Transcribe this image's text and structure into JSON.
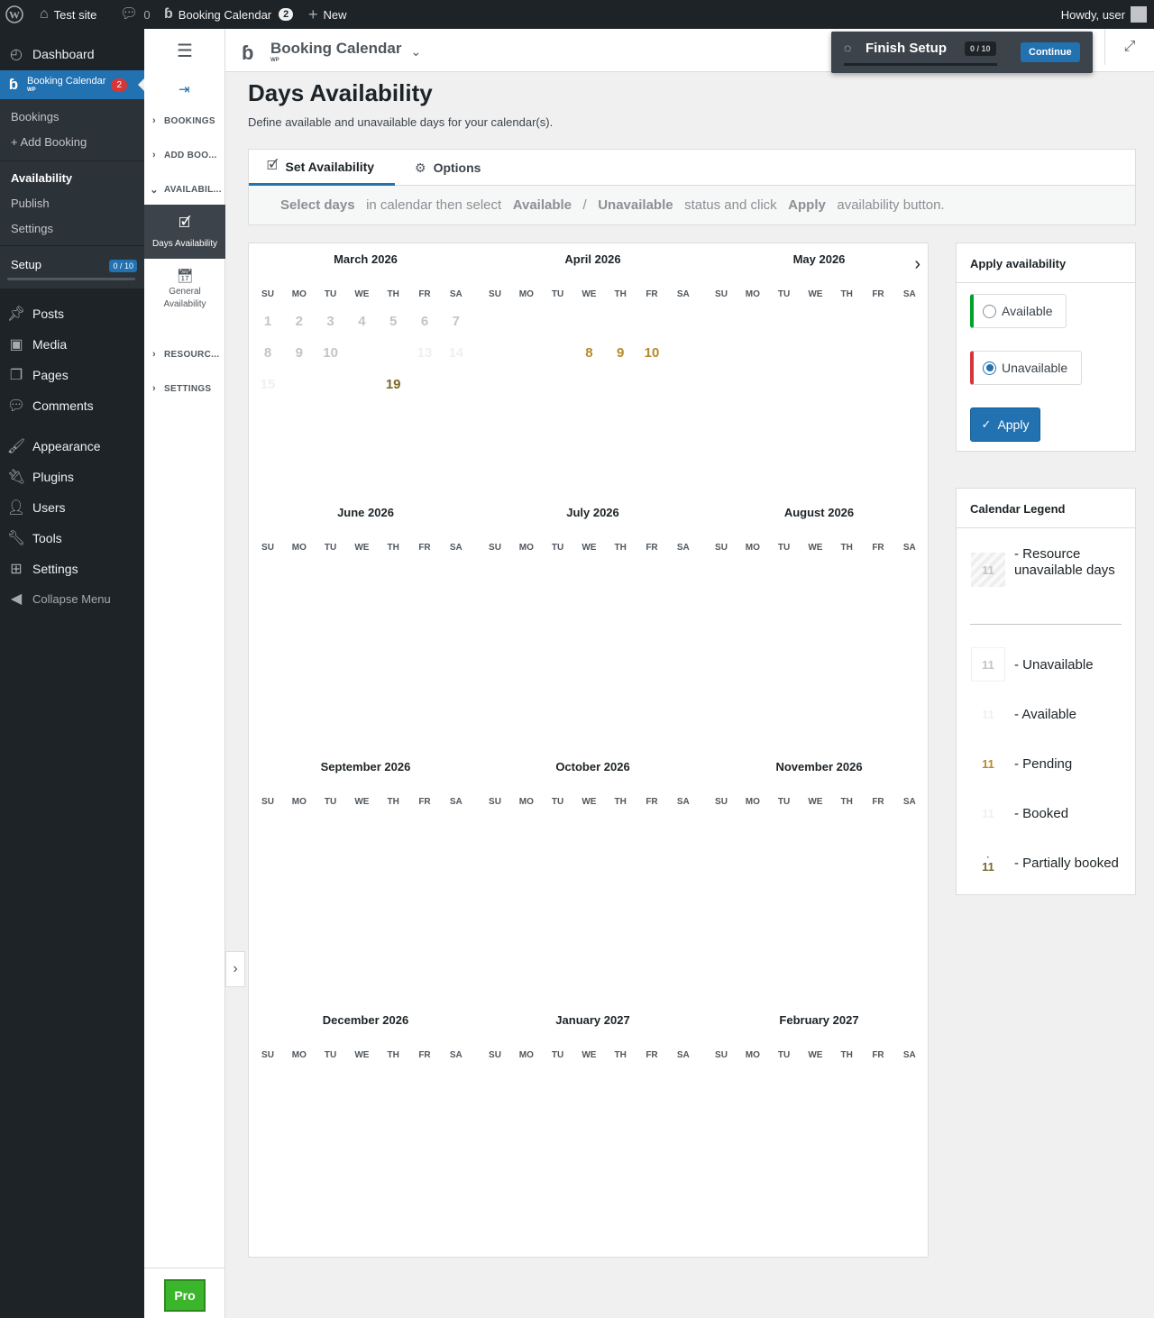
{
  "admin_bar": {
    "site_name": "Test site",
    "comments_count": "0",
    "plugin_name": "Booking Calendar",
    "plugin_count": "2",
    "new_label": "New",
    "howdy": "Howdy, user"
  },
  "admin_menu": {
    "dashboard": "Dashboard",
    "plugin": {
      "label": "Booking Calendar",
      "sub": "WP",
      "badge": "2"
    },
    "submenu": [
      "Bookings",
      "+ Add Booking",
      "Availability",
      "Publish",
      "Settings"
    ],
    "setup": {
      "label": "Setup",
      "badge": "0 / 10"
    },
    "items": [
      "Posts",
      "Media",
      "Pages",
      "Comments",
      "Appearance",
      "Plugins",
      "Users",
      "Tools",
      "Settings"
    ],
    "collapse": "Collapse Menu"
  },
  "plugin_nav": {
    "sections": [
      "BOOKINGS",
      "ADD BOO...",
      "AVAILABIL...",
      "RESOURC...",
      "SETTINGS"
    ],
    "days_availability": "Days Availability",
    "general_availability": "General Availability",
    "pro": "Pro"
  },
  "header": {
    "product": "Booking Calendar",
    "product_sub": "WP",
    "finish_setup": "Finish Setup",
    "setup_badge": "0 / 10",
    "continue": "Continue"
  },
  "page": {
    "title": "Days Availability",
    "subtitle": "Define available and unavailable days for your calendar(s)."
  },
  "tabs": [
    "Set Availability",
    "Options"
  ],
  "hint": {
    "p1": "Select days",
    "p2": "in calendar then select",
    "p3": "Available",
    "p4": "/",
    "p5": "Unavailable",
    "p6": "status and click",
    "p7": "Apply",
    "p8": "availability button."
  },
  "calendar": {
    "weekdays": [
      "SU",
      "MO",
      "TU",
      "WE",
      "TH",
      "FR",
      "SA"
    ],
    "months": [
      "March 2026",
      "April 2026",
      "May 2026",
      "June 2026",
      "July 2026",
      "August 2026",
      "September 2026",
      "October 2026",
      "November 2026",
      "December 2026",
      "January 2027",
      "February 2027"
    ],
    "visible_days": [
      {
        "month": 0,
        "row": 0,
        "col": 0,
        "d": "1",
        "s": "past"
      },
      {
        "month": 0,
        "row": 0,
        "col": 1,
        "d": "2",
        "s": "past"
      },
      {
        "month": 0,
        "row": 0,
        "col": 2,
        "d": "3",
        "s": "past"
      },
      {
        "month": 0,
        "row": 0,
        "col": 3,
        "d": "4",
        "s": "past"
      },
      {
        "month": 0,
        "row": 0,
        "col": 4,
        "d": "5",
        "s": "past"
      },
      {
        "month": 0,
        "row": 0,
        "col": 5,
        "d": "6",
        "s": "past"
      },
      {
        "month": 0,
        "row": 0,
        "col": 6,
        "d": "7",
        "s": "past"
      },
      {
        "month": 0,
        "row": 1,
        "col": 0,
        "d": "8",
        "s": "past"
      },
      {
        "month": 0,
        "row": 1,
        "col": 1,
        "d": "9",
        "s": "past"
      },
      {
        "month": 0,
        "row": 1,
        "col": 2,
        "d": "10",
        "s": "past"
      },
      {
        "month": 0,
        "row": 1,
        "col": 5,
        "d": "13",
        "s": "faint"
      },
      {
        "month": 0,
        "row": 1,
        "col": 6,
        "d": "14",
        "s": "faint"
      },
      {
        "month": 0,
        "row": 2,
        "col": 0,
        "d": "15",
        "s": "faint"
      },
      {
        "month": 0,
        "row": 2,
        "col": 4,
        "d": "19",
        "s": "booked"
      },
      {
        "month": 1,
        "row": 1,
        "col": 3,
        "d": "8",
        "s": "pending"
      },
      {
        "month": 1,
        "row": 1,
        "col": 4,
        "d": "9",
        "s": "pending"
      },
      {
        "month": 1,
        "row": 1,
        "col": 5,
        "d": "10",
        "s": "pending"
      }
    ]
  },
  "apply_panel": {
    "title": "Apply availability",
    "available": "Available",
    "unavailable": "Unavailable",
    "apply": "Apply"
  },
  "legend": {
    "title": "Calendar Legend",
    "cell": "11",
    "resource_unavailable": "- Resource unavailable days",
    "unavailable": "- Unavailable",
    "available": "- Available",
    "pending": "- Pending",
    "booked": "- Booked",
    "partially_booked": "- Partially booked"
  },
  "colors": {
    "admin_dark": "#1d2327",
    "wp_blue": "#2271b1",
    "pending": "#b8892b",
    "booked": "#7a6a2a",
    "pro_green": "#3bb52b",
    "available_bar": "#00a32a",
    "unavailable_bar": "#d63638"
  }
}
